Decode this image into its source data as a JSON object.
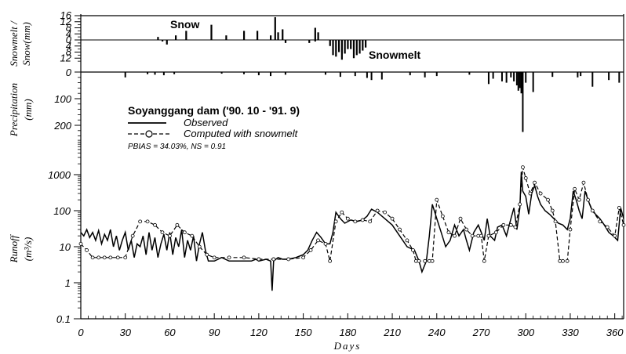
{
  "chart_data": {
    "title": "Soyanggang dam ('90. 10 - '91. 9)",
    "stats": "PBIAS = 34.03%, NS = 0.91",
    "xlabel": "Days",
    "x_range": [
      0,
      366
    ],
    "x_ticks": [
      0,
      30,
      60,
      90,
      120,
      150,
      180,
      210,
      240,
      270,
      300,
      330,
      360
    ],
    "panels": [
      {
        "id": "snow",
        "type": "bar",
        "ylabel_lines": [
          "Snowmelt /",
          "Snow(mm)"
        ],
        "y_range": [
          -16,
          16
        ],
        "y_tick_labels": [
          "16",
          "12",
          "8",
          "4",
          "0",
          "4",
          "8",
          "12"
        ],
        "y_tick_values": [
          16,
          12,
          8,
          4,
          0,
          -4,
          -8,
          -12
        ],
        "annotations": [
          "Snow",
          "Snowmelt"
        ],
        "series": [
          {
            "name": "Snow",
            "x": [
              52,
              64,
              71,
              88,
              98,
              110,
              119,
              128,
              131,
              133,
              136,
              158,
              160
            ],
            "y": [
              2,
              3,
              6,
              10,
              3,
              6,
              6,
              3,
              15,
              5,
              7,
              8,
              5
            ]
          },
          {
            "name": "Snowmelt",
            "x": [
              55,
              58,
              138,
              154,
              158,
              168,
              170,
              172,
              174,
              176,
              178,
              180,
              182,
              184,
              186,
              188,
              190,
              192
            ],
            "y": [
              -1,
              -3,
              -2,
              -2,
              -1,
              -4,
              -10,
              -11,
              -8,
              -13,
              -9,
              -6,
              -6,
              -12,
              -10,
              -9,
              -7,
              -5
            ]
          }
        ]
      },
      {
        "id": "precip",
        "type": "bar",
        "ylabel_lines": [
          "Precipitation",
          "(mm)"
        ],
        "y_range": [
          0,
          200
        ],
        "y_tick_labels": [
          "0",
          "100",
          "200"
        ],
        "y_tick_values": [
          0,
          100,
          200
        ],
        "series": [
          {
            "name": "Precipitation",
            "x": [
              30,
              45,
              50,
              56,
              63,
              95,
              110,
              120,
              128,
              138,
              165,
              175,
              185,
              193,
              196,
              203,
              222,
              232,
              240,
              262,
              275,
              278,
              284,
              287,
              290,
              292,
              294,
              295,
              296,
              297,
              298,
              300,
              305,
              318,
              335,
              337,
              345,
              356,
              363
            ],
            "y": [
              20,
              8,
              10,
              12,
              8,
              6,
              8,
              12,
              15,
              10,
              10,
              18,
              15,
              22,
              30,
              28,
              12,
              20,
              15,
              10,
              45,
              25,
              35,
              40,
              20,
              35,
              50,
              70,
              60,
              80,
              225,
              40,
              75,
              18,
              20,
              15,
              55,
              30,
              40
            ]
          }
        ]
      },
      {
        "id": "runoff",
        "type": "line",
        "scale": "log",
        "ylabel_lines": [
          "Runoff",
          "(m³/s)"
        ],
        "y_range": [
          0.1,
          3000
        ],
        "y_tick_labels": [
          "0.1",
          "1",
          "10",
          "100",
          "1000"
        ],
        "y_tick_values": [
          0.1,
          1,
          10,
          100,
          1000
        ],
        "series": [
          {
            "name": "Observed",
            "x": [
              0,
              2,
              4,
              6,
              8,
              10,
              12,
              14,
              16,
              18,
              20,
              22,
              24,
              26,
              28,
              30,
              32,
              34,
              36,
              38,
              40,
              42,
              44,
              46,
              48,
              50,
              52,
              54,
              56,
              58,
              60,
              62,
              64,
              66,
              68,
              70,
              72,
              74,
              76,
              78,
              80,
              82,
              84,
              86,
              90,
              95,
              100,
              105,
              110,
              115,
              118,
              120,
              125,
              128,
              129,
              130,
              133,
              136,
              140,
              145,
              150,
              153,
              156,
              159,
              162,
              165,
              168,
              170,
              172,
              175,
              178,
              182,
              186,
              190,
              193,
              196,
              200,
              205,
              210,
              215,
              220,
              225,
              228,
              230,
              233,
              235,
              237,
              240,
              243,
              246,
              249,
              252,
              255,
              258,
              260,
              262,
              265,
              268,
              270,
              272,
              274,
              276,
              279,
              281,
              284,
              287,
              290,
              292,
              294,
              296,
              297,
              298,
              300,
              302,
              304,
              306,
              308,
              310,
              313,
              316,
              319,
              322,
              325,
              328,
              330,
              332,
              334,
              336,
              338,
              340,
              342,
              344,
              347,
              350,
              353,
              356,
              359,
              362,
              364,
              366
            ],
            "y": [
              25,
              20,
              30,
              18,
              25,
              15,
              28,
              12,
              22,
              15,
              30,
              10,
              20,
              8,
              15,
              25,
              8,
              15,
              5,
              12,
              10,
              20,
              6,
              25,
              8,
              18,
              5,
              12,
              22,
              8,
              25,
              6,
              18,
              10,
              30,
              5,
              15,
              8,
              20,
              4,
              12,
              25,
              8,
              4,
              4,
              5,
              4,
              4,
              4,
              4,
              4.5,
              4,
              4.5,
              4,
              0.6,
              4,
              5,
              4.5,
              4.5,
              5,
              6,
              8,
              15,
              25,
              18,
              12,
              12,
              25,
              90,
              60,
              45,
              55,
              50,
              55,
              70,
              110,
              90,
              60,
              40,
              20,
              10,
              8,
              4,
              2,
              4,
              20,
              150,
              60,
              25,
              10,
              15,
              40,
              20,
              30,
              15,
              8,
              25,
              40,
              25,
              15,
              60,
              20,
              15,
              35,
              40,
              20,
              60,
              120,
              30,
              120,
              1200,
              350,
              250,
              80,
              300,
              500,
              250,
              150,
              100,
              80,
              60,
              45,
              40,
              30,
              60,
              350,
              200,
              100,
              60,
              350,
              200,
              120,
              80,
              60,
              40,
              25,
              20,
              15,
              120,
              60
            ]
          },
          {
            "name": "Computed with snowmelt",
            "x": [
              0,
              4,
              8,
              12,
              16,
              20,
              25,
              30,
              35,
              40,
              45,
              50,
              55,
              60,
              65,
              70,
              75,
              80,
              85,
              90,
              100,
              110,
              120,
              130,
              140,
              150,
              155,
              160,
              165,
              168,
              172,
              176,
              180,
              185,
              190,
              195,
              200,
              205,
              210,
              215,
              220,
              224,
              226,
              228,
              232,
              235,
              237,
              240,
              244,
              248,
              252,
              256,
              260,
              264,
              268,
              270,
              272,
              275,
              280,
              285,
              290,
              293,
              296,
              298,
              300,
              303,
              306,
              310,
              315,
              318,
              320,
              323,
              325,
              328,
              330,
              333,
              336,
              339,
              342,
              345,
              350,
              355,
              360,
              363,
              366
            ],
            "y": [
              12,
              8,
              5,
              5,
              5,
              5,
              5,
              5,
              20,
              50,
              50,
              40,
              25,
              20,
              40,
              25,
              20,
              10,
              6,
              5,
              5,
              5,
              4.5,
              4.5,
              4.5,
              5,
              8,
              15,
              12,
              4,
              50,
              90,
              60,
              50,
              55,
              50,
              100,
              90,
              60,
              30,
              15,
              8,
              4,
              4,
              4,
              4,
              4,
              200,
              70,
              25,
              20,
              60,
              30,
              20,
              20,
              20,
              4,
              20,
              25,
              40,
              40,
              35,
              150,
              1600,
              800,
              300,
              600,
              300,
              200,
              100,
              50,
              4,
              4,
              4,
              30,
              400,
              200,
              600,
              200,
              100,
              50,
              35,
              20,
              120,
              40
            ]
          }
        ]
      }
    ],
    "legend": [
      "Observed",
      "Computed with snowmelt"
    ]
  }
}
